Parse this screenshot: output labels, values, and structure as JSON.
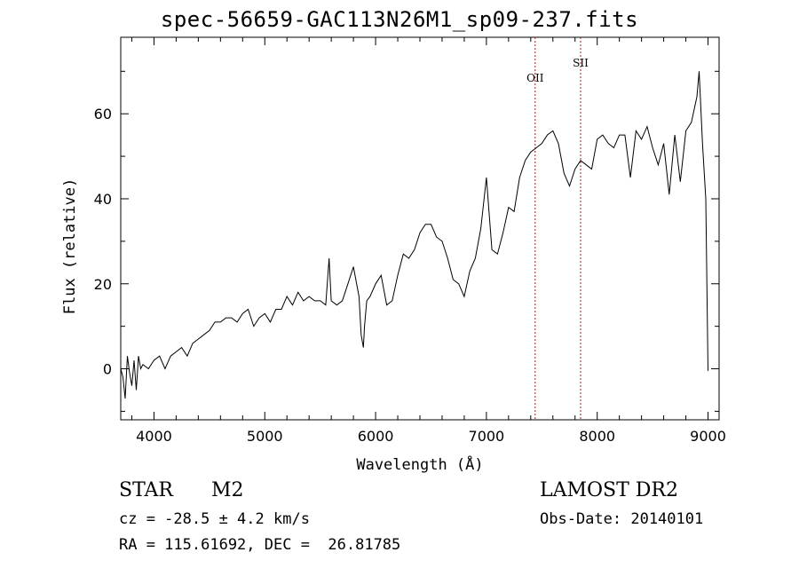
{
  "chart_data": {
    "type": "line",
    "title": "spec-56659-GAC113N26M1_sp09-237.fits",
    "xlabel": "Wavelength (Å)",
    "ylabel": "Flux (relative)",
    "xlim": [
      3700,
      9100
    ],
    "ylim": [
      -12,
      78
    ],
    "xticks": [
      4000,
      5000,
      6000,
      7000,
      8000,
      9000
    ],
    "yticks": [
      0,
      20,
      40,
      60
    ],
    "grid": false,
    "series": [
      {
        "x": [
          3700,
          3720,
          3740,
          3760,
          3780,
          3800,
          3820,
          3840,
          3860,
          3880,
          3900,
          3950,
          4000,
          4050,
          4100,
          4150,
          4200,
          4250,
          4300,
          4350,
          4400,
          4450,
          4500,
          4550,
          4600,
          4650,
          4700,
          4750,
          4800,
          4850,
          4900,
          4950,
          5000,
          5050,
          5100,
          5150,
          5200,
          5250,
          5300,
          5350,
          5400,
          5450,
          5500,
          5550,
          5580,
          5600,
          5650,
          5700,
          5750,
          5800,
          5850,
          5870,
          5890,
          5900,
          5920,
          5950,
          6000,
          6050,
          6100,
          6150,
          6200,
          6250,
          6300,
          6350,
          6400,
          6450,
          6500,
          6550,
          6600,
          6650,
          6700,
          6750,
          6800,
          6850,
          6900,
          6950,
          7000,
          7050,
          7100,
          7150,
          7200,
          7250,
          7300,
          7350,
          7400,
          7450,
          7500,
          7550,
          7600,
          7650,
          7700,
          7750,
          7800,
          7850,
          7900,
          7950,
          8000,
          8050,
          8100,
          8150,
          8200,
          8250,
          8300,
          8350,
          8400,
          8450,
          8500,
          8550,
          8600,
          8650,
          8700,
          8750,
          8800,
          8850,
          8900,
          8920,
          8950,
          8980,
          9000
        ],
        "y": [
          0,
          -2,
          -7,
          3,
          -1,
          -4,
          2,
          -5,
          3,
          0,
          1,
          0,
          2,
          3,
          0,
          3,
          4,
          5,
          3,
          6,
          7,
          8,
          9,
          11,
          11,
          12,
          12,
          11,
          13,
          14,
          10,
          12,
          13,
          11,
          14,
          14,
          17,
          15,
          18,
          16,
          17,
          16,
          16,
          15,
          26,
          16,
          15,
          16,
          20,
          24,
          17,
          8,
          5,
          10,
          16,
          17,
          20,
          22,
          15,
          16,
          22,
          27,
          26,
          28,
          32,
          34,
          34,
          31,
          30,
          26,
          21,
          20,
          17,
          23,
          26,
          33,
          45,
          28,
          27,
          32,
          38,
          37,
          45,
          49,
          51,
          52,
          53,
          55,
          56,
          53,
          46,
          43,
          47,
          49,
          48,
          47,
          54,
          55,
          53,
          52,
          55,
          55,
          45,
          56,
          54,
          57,
          52,
          48,
          53,
          41,
          55,
          44,
          56,
          58,
          64,
          70,
          53,
          40,
          -0.5
        ]
      }
    ],
    "lines": [
      {
        "label": "OII",
        "x": 7440,
        "color": "#9b2020"
      },
      {
        "label": "SII",
        "x": 7850,
        "color": "#9b2020"
      }
    ]
  },
  "info": {
    "object_class": "STAR",
    "subclass": "M2",
    "cz": "cz = -28.5 ± 4.2 km/s",
    "coords": "RA = 115.61692, DEC =  26.81785",
    "survey": "LAMOST DR2",
    "obs_date": "Obs-Date: 20140101"
  }
}
